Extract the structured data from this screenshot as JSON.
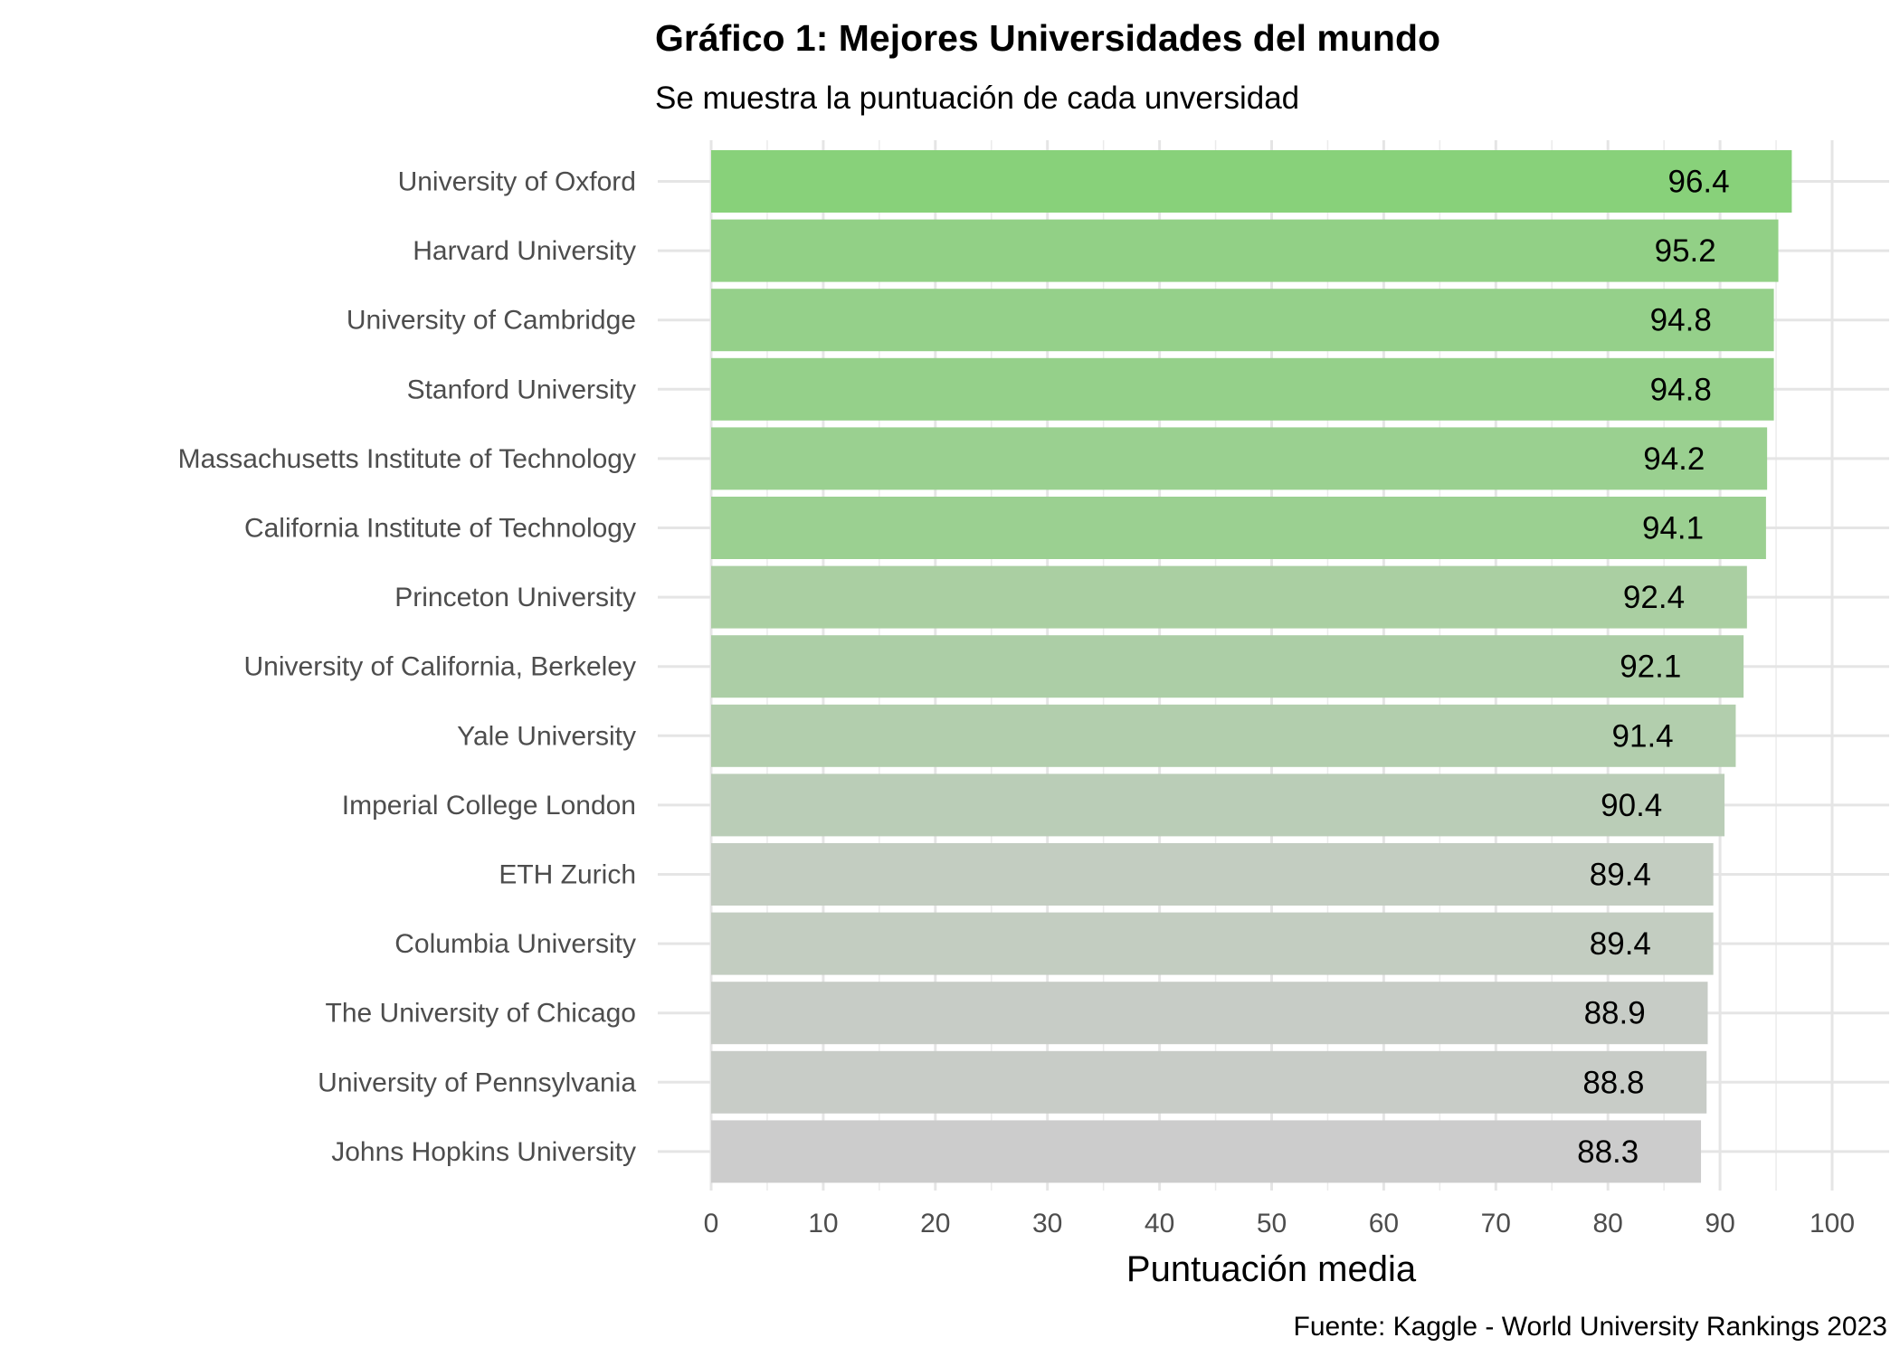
{
  "chart_data": {
    "type": "bar",
    "orientation": "horizontal",
    "title": "Gráfico 1: Mejores Universidades del mundo",
    "subtitle": "Se muestra la puntuación de cada unversidad",
    "xlabel": "Puntuación media",
    "ylabel": "",
    "caption": "Fuente: Kaggle - World University Rankings 2023",
    "xlim": [
      0,
      100
    ],
    "xticks": [
      "0",
      "10",
      "20",
      "30",
      "40",
      "50",
      "60",
      "70",
      "80",
      "90",
      "100"
    ],
    "grid": true,
    "legend": "none",
    "color_high": "#88D17A",
    "color_low": "#CCCCCC",
    "categories": [
      "University of Oxford",
      "Harvard University",
      "University of Cambridge",
      "Stanford University",
      "Massachusetts Institute of Technology",
      "California Institute of Technology",
      "Princeton University",
      "University of California, Berkeley",
      "Yale University",
      "Imperial College London",
      "ETH Zurich",
      "Columbia University",
      "The University of Chicago",
      "University of Pennsylvania",
      "Johns Hopkins University"
    ],
    "values": [
      96.4,
      95.2,
      94.8,
      94.8,
      94.2,
      94.1,
      92.4,
      92.1,
      91.4,
      90.4,
      89.4,
      89.4,
      88.9,
      88.8,
      88.3
    ],
    "labels": [
      "96.4",
      "95.2",
      "94.8",
      "94.8",
      "94.2",
      "94.1",
      "92.4",
      "92.1",
      "91.4",
      "90.4",
      "89.4",
      "89.4",
      "88.9",
      "88.8",
      "88.3"
    ]
  }
}
